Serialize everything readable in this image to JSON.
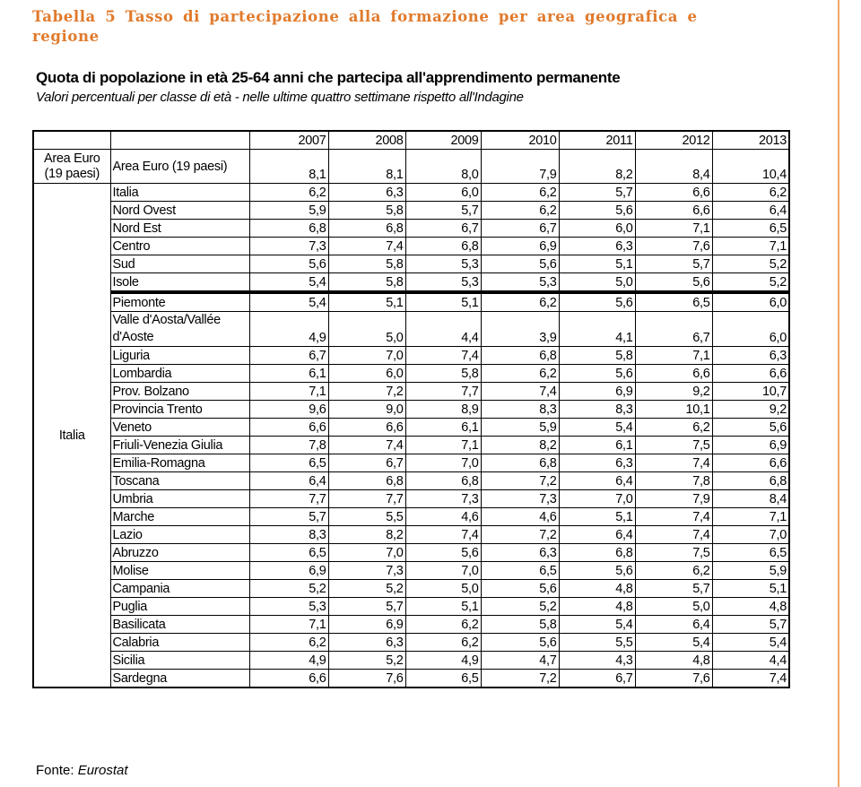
{
  "document": {
    "table_caption": "Tabella 5 Tasso di partecipazione alla formazione per area geografica e regione",
    "heading": "Quota di popolazione in età 25-64 anni che partecipa all'apprendimento permanente",
    "subheading": "Valori percentuali  per classe di età - nelle ultime quattro settimane rispetto all'Indagine",
    "source_label": "Fonte: ",
    "source_value": "Eurostat",
    "accent_color": "#e07a2c"
  },
  "table": {
    "years": [
      "2007",
      "2008",
      "2009",
      "2010",
      "2011",
      "2012",
      "2013"
    ],
    "euro_group": "Area Euro (19 paesi)",
    "euro_row": {
      "name": "Area Euro (19 paesi)",
      "values": [
        "8,1",
        "8,1",
        "8,0",
        "7,9",
        "8,2",
        "8,4",
        "10,4"
      ]
    },
    "italy_group": "Italia",
    "areas": [
      {
        "name": "Italia",
        "values": [
          "6,2",
          "6,3",
          "6,0",
          "6,2",
          "5,7",
          "6,6",
          "6,2"
        ]
      },
      {
        "name": "Nord Ovest",
        "values": [
          "5,9",
          "5,8",
          "5,7",
          "6,2",
          "5,6",
          "6,6",
          "6,4"
        ]
      },
      {
        "name": "Nord Est",
        "values": [
          "6,8",
          "6,8",
          "6,7",
          "6,7",
          "6,0",
          "7,1",
          "6,5"
        ]
      },
      {
        "name": "Centro",
        "values": [
          "7,3",
          "7,4",
          "6,8",
          "6,9",
          "6,3",
          "7,6",
          "7,1"
        ]
      },
      {
        "name": "Sud",
        "values": [
          "5,6",
          "5,8",
          "5,3",
          "5,6",
          "5,1",
          "5,7",
          "5,2"
        ]
      },
      {
        "name": "Isole",
        "values": [
          "5,4",
          "5,8",
          "5,3",
          "5,3",
          "5,0",
          "5,6",
          "5,2"
        ]
      }
    ],
    "regions": [
      {
        "name": "Piemonte",
        "values": [
          "5,4",
          "5,1",
          "5,1",
          "6,2",
          "5,6",
          "6,5",
          "6,0"
        ]
      },
      {
        "name": "Valle d'Aosta/Vallée d'Aoste",
        "values": [
          "4,9",
          "5,0",
          "4,4",
          "3,9",
          "4,1",
          "6,7",
          "6,0"
        ]
      },
      {
        "name": "Liguria",
        "values": [
          "6,7",
          "7,0",
          "7,4",
          "6,8",
          "5,8",
          "7,1",
          "6,3"
        ]
      },
      {
        "name": "Lombardia",
        "values": [
          "6,1",
          "6,0",
          "5,8",
          "6,2",
          "5,6",
          "6,6",
          "6,6"
        ]
      },
      {
        "name": "Prov. Bolzano",
        "values": [
          "7,1",
          "7,2",
          "7,7",
          "7,4",
          "6,9",
          "9,2",
          "10,7"
        ]
      },
      {
        "name": "Provincia Trento",
        "values": [
          "9,6",
          "9,0",
          "8,9",
          "8,3",
          "8,3",
          "10,1",
          "9,2"
        ]
      },
      {
        "name": "Veneto",
        "values": [
          "6,6",
          "6,6",
          "6,1",
          "5,9",
          "5,4",
          "6,2",
          "5,6"
        ]
      },
      {
        "name": "Friuli-Venezia Giulia",
        "values": [
          "7,8",
          "7,4",
          "7,1",
          "8,2",
          "6,1",
          "7,5",
          "6,9"
        ]
      },
      {
        "name": "Emilia-Romagna",
        "values": [
          "6,5",
          "6,7",
          "7,0",
          "6,8",
          "6,3",
          "7,4",
          "6,6"
        ]
      },
      {
        "name": "Toscana",
        "values": [
          "6,4",
          "6,8",
          "6,8",
          "7,2",
          "6,4",
          "7,8",
          "6,8"
        ]
      },
      {
        "name": "Umbria",
        "values": [
          "7,7",
          "7,7",
          "7,3",
          "7,3",
          "7,0",
          "7,9",
          "8,4"
        ]
      },
      {
        "name": "Marche",
        "values": [
          "5,7",
          "5,5",
          "4,6",
          "4,6",
          "5,1",
          "7,4",
          "7,1"
        ]
      },
      {
        "name": "Lazio",
        "values": [
          "8,3",
          "8,2",
          "7,4",
          "7,2",
          "6,4",
          "7,4",
          "7,0"
        ]
      },
      {
        "name": "Abruzzo",
        "values": [
          "6,5",
          "7,0",
          "5,6",
          "6,3",
          "6,8",
          "7,5",
          "6,5"
        ]
      },
      {
        "name": "Molise",
        "values": [
          "6,9",
          "7,3",
          "7,0",
          "6,5",
          "5,6",
          "6,2",
          "5,9"
        ]
      },
      {
        "name": "Campania",
        "values": [
          "5,2",
          "5,2",
          "5,0",
          "5,6",
          "4,8",
          "5,7",
          "5,1"
        ]
      },
      {
        "name": "Puglia",
        "values": [
          "5,3",
          "5,7",
          "5,1",
          "5,2",
          "4,8",
          "5,0",
          "4,8"
        ]
      },
      {
        "name": "Basilicata",
        "values": [
          "7,1",
          "6,9",
          "6,2",
          "5,8",
          "5,4",
          "6,4",
          "5,7"
        ]
      },
      {
        "name": "Calabria",
        "values": [
          "6,2",
          "6,3",
          "6,2",
          "5,6",
          "5,5",
          "5,4",
          "5,4"
        ]
      },
      {
        "name": "Sicilia",
        "values": [
          "4,9",
          "5,2",
          "4,9",
          "4,7",
          "4,3",
          "4,8",
          "4,4"
        ]
      },
      {
        "name": "Sardegna",
        "values": [
          "6,6",
          "7,6",
          "6,5",
          "7,2",
          "6,7",
          "7,6",
          "7,4"
        ]
      }
    ]
  }
}
